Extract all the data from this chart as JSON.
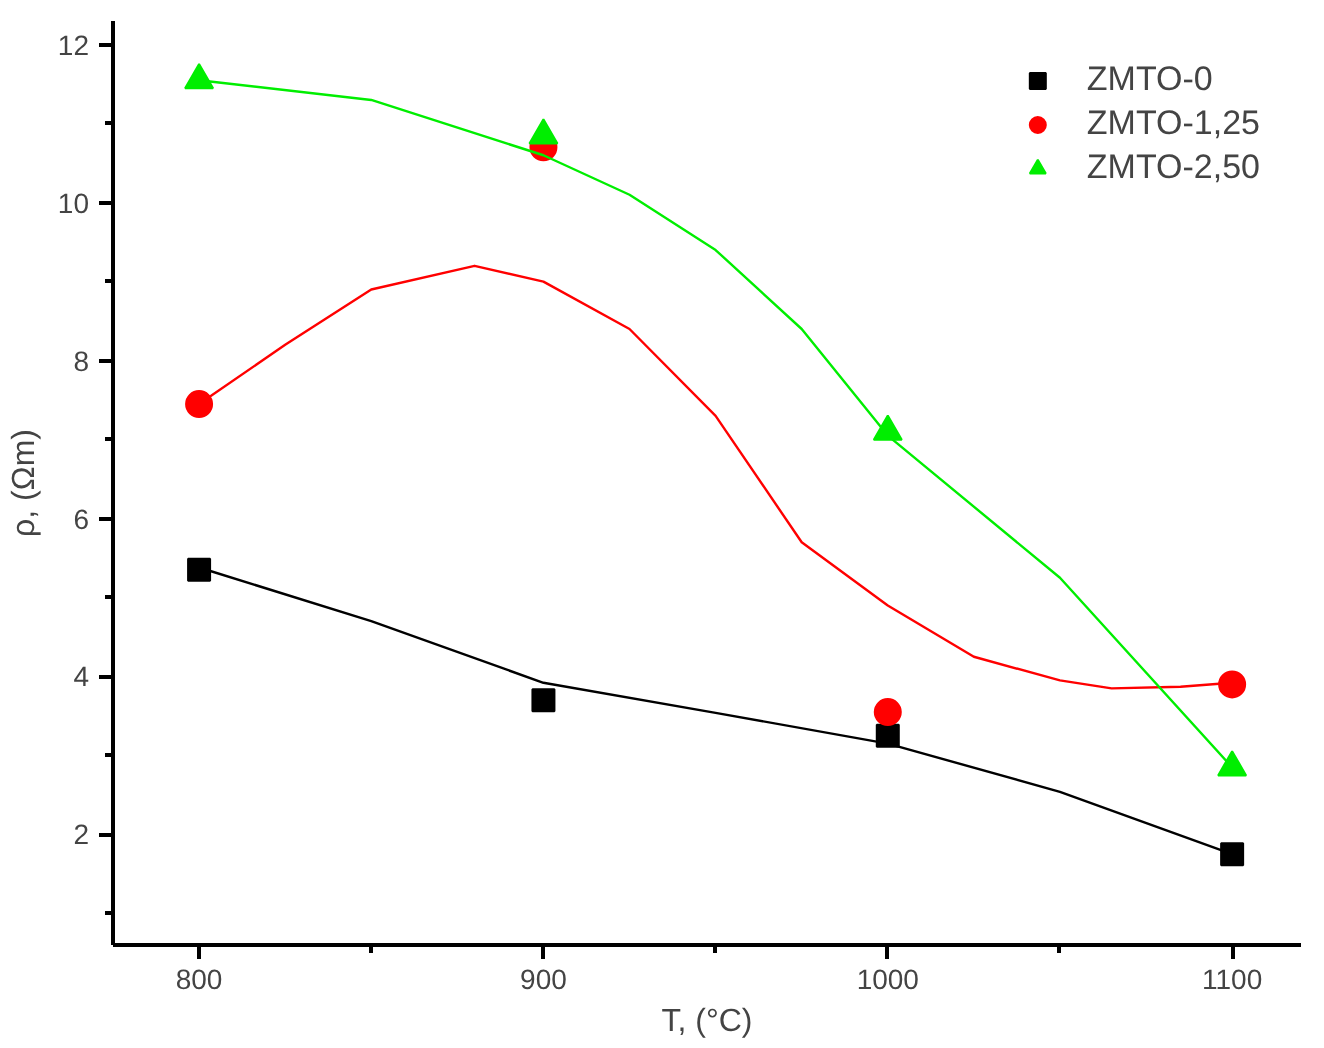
{
  "chart_data": {
    "type": "scatter",
    "xlabel": "T, (°C)",
    "ylabel": "ρ, (Ωm)",
    "x": [
      800,
      900,
      1000,
      1100
    ],
    "xlim": [
      775,
      1120
    ],
    "ylim": [
      0.6,
      12.3
    ],
    "xticks": [
      800,
      {
        "value": 850,
        "label": null
      },
      900,
      {
        "value": 950,
        "label": null
      },
      1000,
      {
        "value": 1050,
        "label": null
      },
      1100
    ],
    "yticks": [
      {
        "value": 1,
        "label": null
      },
      2,
      {
        "value": 3,
        "label": null
      },
      4,
      {
        "value": 5,
        "label": null
      },
      6,
      {
        "value": 7,
        "label": null
      },
      8,
      {
        "value": 9,
        "label": null
      },
      10,
      {
        "value": 11,
        "label": null
      },
      12
    ],
    "grid": false,
    "legend": "top right",
    "series": [
      {
        "name": "ZMTO-0",
        "color": "#000000",
        "marker": "square",
        "values": [
          5.35,
          3.7,
          3.25,
          1.75
        ]
      },
      {
        "name": "ZMTO-1,25",
        "color": "#ff0000",
        "marker": "circle",
        "values": [
          7.45,
          10.7,
          3.55,
          3.9
        ]
      },
      {
        "name": "ZMTO-2,50",
        "color": "#00ee00",
        "marker": "triangle",
        "values": [
          11.55,
          10.85,
          7.1,
          2.85
        ]
      },
      {
        "type": "line",
        "color": "#000000",
        "x": [
          800,
          850,
          900,
          950,
          1000,
          1050,
          1100
        ],
        "values": [
          5.38,
          4.7,
          3.92,
          3.54,
          3.15,
          2.54,
          1.75
        ]
      },
      {
        "type": "line",
        "color": "#ff0000",
        "x": [
          800,
          825,
          850,
          880,
          900,
          925,
          950,
          975,
          1000,
          1025,
          1050,
          1065,
          1085,
          1100
        ],
        "values": [
          7.45,
          8.2,
          8.9,
          9.2,
          9.0,
          8.4,
          7.3,
          5.7,
          4.9,
          4.25,
          3.95,
          3.85,
          3.87,
          3.92
        ]
      },
      {
        "type": "line",
        "color": "#00ee00",
        "x": [
          800,
          850,
          900,
          925,
          950,
          975,
          1000,
          1050,
          1100
        ],
        "values": [
          11.55,
          11.3,
          10.6,
          10.1,
          9.4,
          8.4,
          7.05,
          5.25,
          2.85
        ]
      }
    ]
  }
}
